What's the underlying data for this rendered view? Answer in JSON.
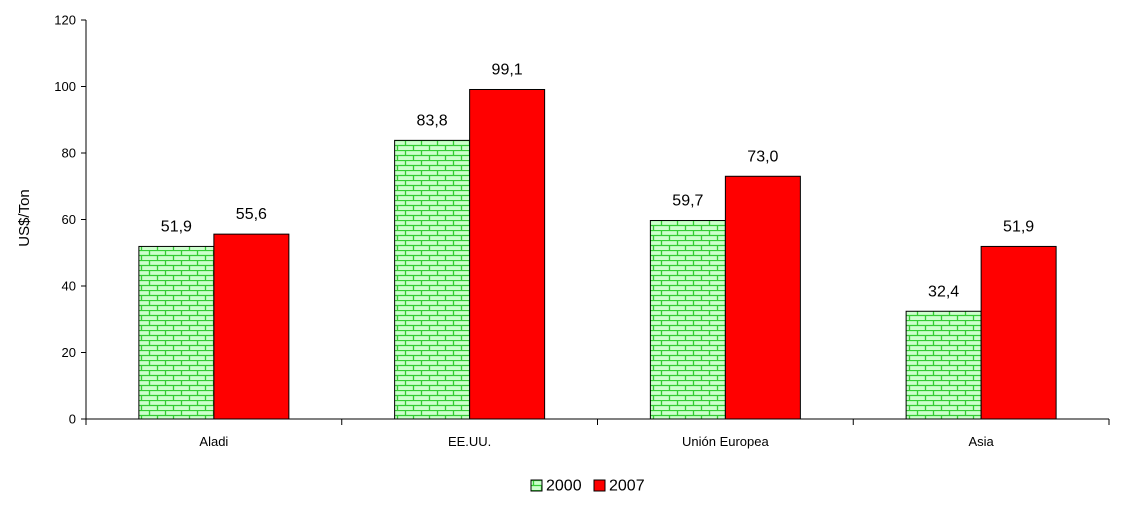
{
  "chart_data": {
    "type": "bar",
    "categories": [
      "Aladi",
      "EE.UU.",
      "Unión Europea",
      "Asia"
    ],
    "series": [
      {
        "name": "2000",
        "values": [
          51.9,
          83.8,
          59.7,
          32.4
        ],
        "labels": [
          "51,9",
          "83,8",
          "59,7",
          "32,4"
        ],
        "color": "#ccffcc",
        "pattern": "brick-green"
      },
      {
        "name": "2007",
        "values": [
          55.6,
          99.1,
          73.0,
          51.9
        ],
        "labels": [
          "55,6",
          "99,1",
          "73,0",
          "51,9"
        ],
        "color": "#ff0000",
        "pattern": "solid"
      }
    ],
    "ylabel": "US$/Ton",
    "xlabel": "",
    "ylim": [
      0,
      120
    ],
    "yticks": [
      0,
      20,
      40,
      60,
      80,
      100,
      120
    ],
    "grid": false,
    "legend": "bottom-center"
  }
}
